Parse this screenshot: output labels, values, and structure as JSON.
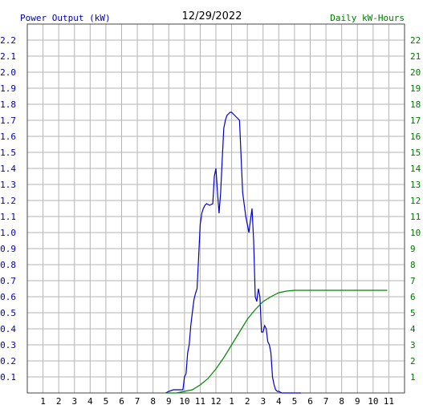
{
  "chart_data": {
    "type": "line",
    "title": "12/29/2022",
    "y_label": "Power Output (kW)",
    "y2_label": "Daily kW-Hours",
    "x_ticks": [
      "1",
      "2",
      "3",
      "4",
      "5",
      "6",
      "7",
      "8",
      "9",
      "10",
      "11",
      "12",
      "1",
      "2",
      "3",
      "4",
      "5",
      "6",
      "7",
      "8",
      "9",
      "10",
      "11"
    ],
    "y_ticks": [
      "0.1",
      "0.2",
      "0.3",
      "0.4",
      "0.5",
      "0.6",
      "0.7",
      "0.8",
      "0.9",
      "1.0",
      "1.1",
      "1.2",
      "1.3",
      "1.4",
      "1.5",
      "1.6",
      "1.7",
      "1.8",
      "1.9",
      "2.0",
      "2.1",
      "2.2"
    ],
    "y2_ticks": [
      "1",
      "2",
      "3",
      "4",
      "5",
      "6",
      "7",
      "8",
      "9",
      "10",
      "11",
      "12",
      "13",
      "14",
      "15",
      "16",
      "17",
      "18",
      "19",
      "20",
      "21",
      "22"
    ],
    "x_range_hours": [
      0,
      24
    ],
    "ylim": [
      0,
      2.3
    ],
    "y2lim": [
      0,
      23
    ],
    "grid": true,
    "colors": {
      "power": "#0000cc",
      "energy": "#008800",
      "grid": "#b4b4b4",
      "left_axis": "#0000aa",
      "right_axis": "#007700"
    },
    "series": [
      {
        "name": "Power Output (kW)",
        "axis": "left",
        "x": [
          8.8,
          9.0,
          9.3,
          9.6,
          9.9,
          10.0,
          10.1,
          10.2,
          10.3,
          10.4,
          10.5,
          10.6,
          10.7,
          10.8,
          10.9,
          11.0,
          11.1,
          11.2,
          11.3,
          11.4,
          11.6,
          11.8,
          11.9,
          12.0,
          12.1,
          12.2,
          12.3,
          12.4,
          12.5,
          12.6,
          12.7,
          12.8,
          12.9,
          13.0,
          13.1,
          13.3,
          13.5,
          13.7,
          13.9,
          14.0,
          14.1,
          14.2,
          14.3,
          14.4,
          14.5,
          14.6,
          14.7,
          14.8,
          14.9,
          15.0,
          15.1,
          15.2,
          15.3,
          15.4,
          15.5,
          15.6,
          15.7,
          15.8,
          15.9,
          16.0,
          16.2,
          16.5,
          16.8,
          17.1,
          17.4
        ],
        "y": [
          0.0,
          0.01,
          0.02,
          0.02,
          0.02,
          0.1,
          0.12,
          0.25,
          0.3,
          0.42,
          0.5,
          0.58,
          0.62,
          0.65,
          0.85,
          1.05,
          1.12,
          1.15,
          1.17,
          1.18,
          1.17,
          1.18,
          1.35,
          1.4,
          1.25,
          1.12,
          1.25,
          1.45,
          1.65,
          1.7,
          1.73,
          1.74,
          1.75,
          1.75,
          1.74,
          1.72,
          1.7,
          1.25,
          1.1,
          1.05,
          1.0,
          1.08,
          1.15,
          0.95,
          0.6,
          0.57,
          0.65,
          0.6,
          0.38,
          0.38,
          0.42,
          0.4,
          0.32,
          0.3,
          0.25,
          0.1,
          0.05,
          0.02,
          0.01,
          0.01,
          0.0,
          0.0,
          0.0,
          0.0,
          0.0
        ]
      },
      {
        "name": "Daily kW-Hours",
        "axis": "right",
        "x": [
          8.8,
          9.5,
          10.0,
          10.5,
          11.0,
          11.5,
          12.0,
          12.5,
          13.0,
          13.5,
          14.0,
          14.5,
          15.0,
          15.5,
          16.0,
          16.5,
          17.0,
          18.0,
          19.0,
          20.0,
          21.0,
          22.0,
          22.9
        ],
        "y": [
          0.0,
          0.0,
          0.1,
          0.2,
          0.5,
          0.9,
          1.5,
          2.2,
          3.0,
          3.8,
          4.6,
          5.2,
          5.7,
          6.0,
          6.25,
          6.35,
          6.4,
          6.4,
          6.4,
          6.4,
          6.4,
          6.4,
          6.4
        ]
      }
    ]
  }
}
